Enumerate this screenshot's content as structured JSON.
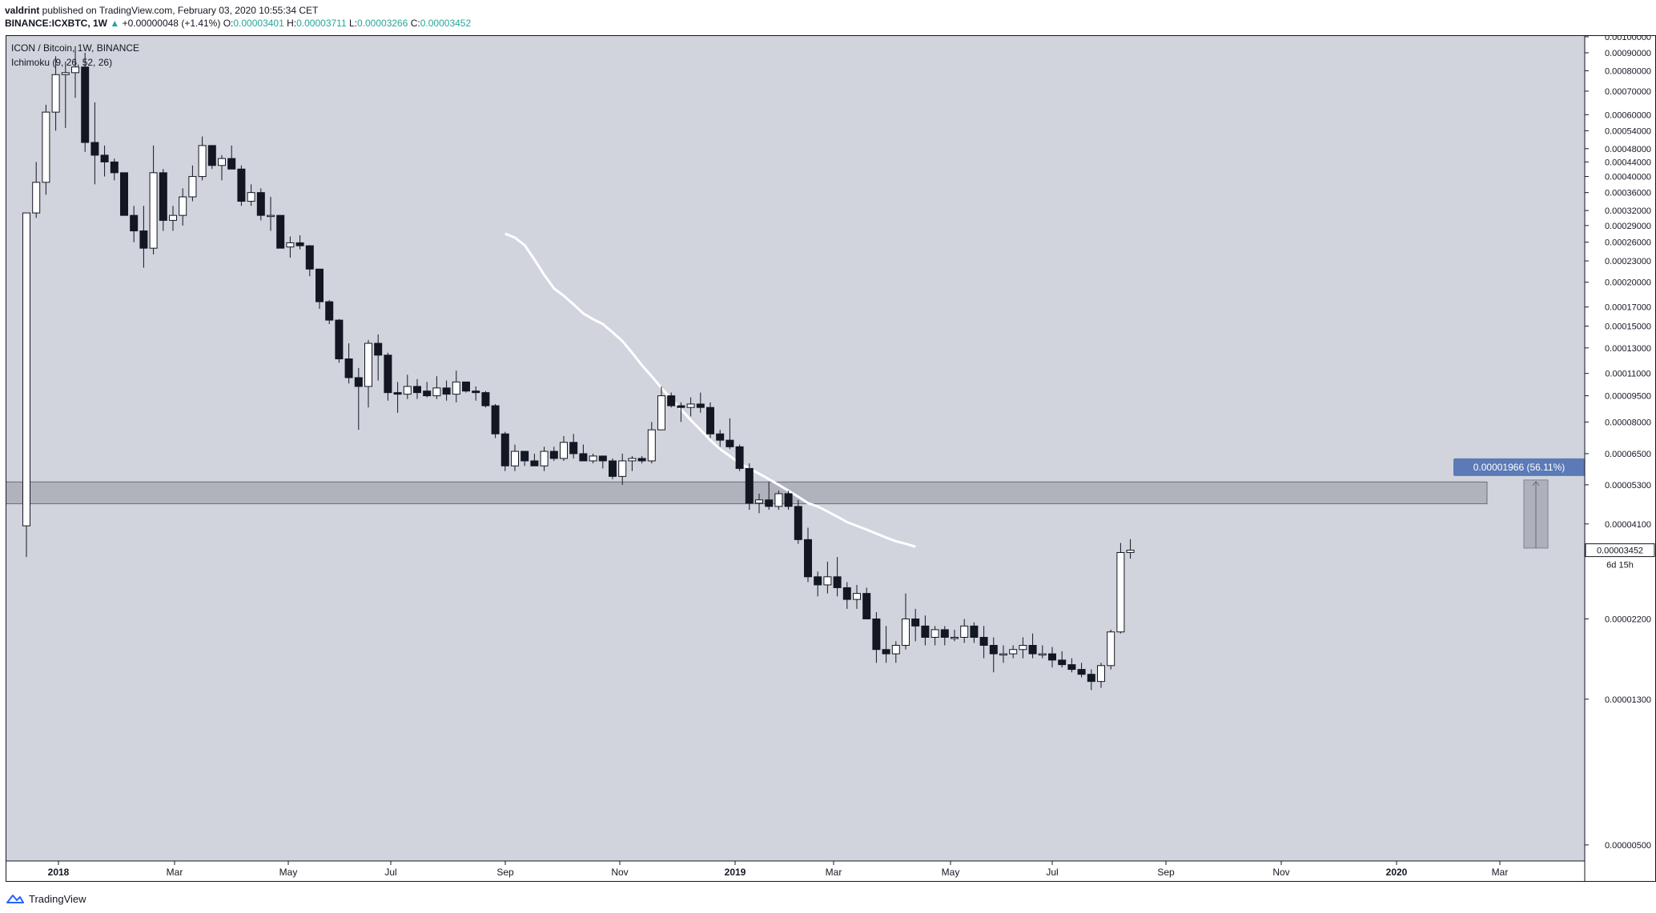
{
  "header": {
    "publisher": "valdrint",
    "published_text": " published on TradingView.com, February 03, 2020 10:55:34 CET",
    "symbol_line": "BINANCE:ICXBTC, 1W",
    "change": "+0.00000048 (+1.41%)",
    "o_label": "O:",
    "o_value": "0.00003401",
    "h_label": "H:",
    "h_value": "0.00003711",
    "l_label": "L:",
    "l_value": "0.00003266",
    "c_label": "C:",
    "c_value": "0.00003452"
  },
  "legend": {
    "title": "ICON / Bitcoin, 1W, BINANCE",
    "indicator": "Ichimoku (9, 26, 52, 26)"
  },
  "footer": {
    "brand": "TradingView"
  },
  "colors": {
    "background": "#d1d4dc",
    "bull": "#ffffff",
    "bear": "#131722",
    "line": "#ffffff",
    "zone": "#9598a1",
    "label_bg": "#5b7ab7"
  },
  "chart_data": {
    "type": "candlestick",
    "title": "ICON / Bitcoin, 1W, BINANCE",
    "log_scale": true,
    "xlabel": "",
    "ylabel": "",
    "ylim": [
      4.5e-06,
      0.00101
    ],
    "y_ticks": [
      "0.00100000",
      "0.00090000",
      "0.00080000",
      "0.00070000",
      "0.00060000",
      "0.00054000",
      "0.00048000",
      "0.00044000",
      "0.00040000",
      "0.00036000",
      "0.00032000",
      "0.00029000",
      "0.00026000",
      "0.00023000",
      "0.00020000",
      "0.00017000",
      "0.00015000",
      "0.00013000",
      "0.00011000",
      "0.00009500",
      "0.00008000",
      "0.00006500",
      "0.00005300",
      "0.00004100",
      "0.00002200",
      "0.00001300",
      "0.00000500"
    ],
    "x_ticks": [
      "2018",
      "Mar",
      "May",
      "Jul",
      "Sep",
      "Nov",
      "2019",
      "Mar",
      "May",
      "Jul",
      "Sep",
      "Nov",
      "2020",
      "Mar"
    ],
    "candles": [
      {
        "o": 4.05e-05,
        "h": 0.000315,
        "l": 3.3e-05,
        "c": 0.000315
      },
      {
        "o": 0.000315,
        "h": 0.00044,
        "l": 0.000305,
        "c": 0.000385
      },
      {
        "o": 0.000385,
        "h": 0.00064,
        "l": 0.000355,
        "c": 0.00061
      },
      {
        "o": 0.00061,
        "h": 0.00088,
        "l": 0.00054,
        "c": 0.00078
      },
      {
        "o": 0.00078,
        "h": 0.00085,
        "l": 0.00055,
        "c": 0.00079
      },
      {
        "o": 0.00079,
        "h": 0.00094,
        "l": 0.00067,
        "c": 0.00082
      },
      {
        "o": 0.00082,
        "h": 0.0009,
        "l": 0.00047,
        "c": 0.0005
      },
      {
        "o": 0.0005,
        "h": 0.00065,
        "l": 0.00038,
        "c": 0.00046
      },
      {
        "o": 0.00046,
        "h": 0.00049,
        "l": 0.0004,
        "c": 0.00044
      },
      {
        "o": 0.00044,
        "h": 0.00045,
        "l": 0.00039,
        "c": 0.00041
      },
      {
        "o": 0.00041,
        "h": 0.00041,
        "l": 0.00031,
        "c": 0.00031
      },
      {
        "o": 0.00031,
        "h": 0.00033,
        "l": 0.00026,
        "c": 0.00028
      },
      {
        "o": 0.00028,
        "h": 0.00033,
        "l": 0.00022,
        "c": 0.00025
      },
      {
        "o": 0.00025,
        "h": 0.00049,
        "l": 0.00024,
        "c": 0.00041
      },
      {
        "o": 0.00041,
        "h": 0.00042,
        "l": 0.00028,
        "c": 0.0003
      },
      {
        "o": 0.0003,
        "h": 0.00033,
        "l": 0.00028,
        "c": 0.00031
      },
      {
        "o": 0.00031,
        "h": 0.00037,
        "l": 0.00029,
        "c": 0.00035
      },
      {
        "o": 0.00035,
        "h": 0.00043,
        "l": 0.00034,
        "c": 0.0004
      },
      {
        "o": 0.0004,
        "h": 0.00052,
        "l": 0.00039,
        "c": 0.00049
      },
      {
        "o": 0.00049,
        "h": 0.00049,
        "l": 0.00042,
        "c": 0.00043
      },
      {
        "o": 0.00043,
        "h": 0.00046,
        "l": 0.00039,
        "c": 0.00045
      },
      {
        "o": 0.00045,
        "h": 0.00049,
        "l": 0.00042,
        "c": 0.00042
      },
      {
        "o": 0.00042,
        "h": 0.00043,
        "l": 0.00033,
        "c": 0.00034
      },
      {
        "o": 0.00034,
        "h": 0.00038,
        "l": 0.00033,
        "c": 0.00036
      },
      {
        "o": 0.00036,
        "h": 0.00037,
        "l": 0.0003,
        "c": 0.00031
      },
      {
        "o": 0.00031,
        "h": 0.00035,
        "l": 0.00028,
        "c": 0.00031
      },
      {
        "o": 0.00031,
        "h": 0.00031,
        "l": 0.00025,
        "c": 0.00025
      },
      {
        "o": 0.000252,
        "h": 0.00027,
        "l": 0.000235,
        "c": 0.000259
      },
      {
        "o": 0.000259,
        "h": 0.000272,
        "l": 0.000248,
        "c": 0.000254
      },
      {
        "o": 0.000254,
        "h": 0.000255,
        "l": 0.000208,
        "c": 0.000218
      },
      {
        "o": 0.000218,
        "h": 0.000218,
        "l": 0.000168,
        "c": 0.000176
      },
      {
        "o": 0.000176,
        "h": 0.000178,
        "l": 0.000152,
        "c": 0.000156
      },
      {
        "o": 0.000156,
        "h": 0.000157,
        "l": 0.000118,
        "c": 0.000121
      },
      {
        "o": 0.000121,
        "h": 0.000134,
        "l": 0.000103,
        "c": 0.000107
      },
      {
        "o": 0.000107,
        "h": 0.000114,
        "l": 7.6e-05,
        "c": 0.000101
      },
      {
        "o": 0.000101,
        "h": 0.000137,
        "l": 8.8e-05,
        "c": 0.000134
      },
      {
        "o": 0.000134,
        "h": 0.000142,
        "l": 0.000105,
        "c": 0.000124
      },
      {
        "o": 0.000124,
        "h": 0.000126,
        "l": 9.2e-05,
        "c": 9.7e-05
      },
      {
        "o": 9.7e-05,
        "h": 0.000104,
        "l": 8.5e-05,
        "c": 9.6e-05
      },
      {
        "o": 9.6e-05,
        "h": 0.000109,
        "l": 9.3e-05,
        "c": 0.000101
      },
      {
        "o": 0.000101,
        "h": 0.000106,
        "l": 9.3e-05,
        "c": 9.7e-05
      },
      {
        "o": 9.8e-05,
        "h": 0.000104,
        "l": 9.4e-05,
        "c": 9.5e-05
      },
      {
        "o": 9.5e-05,
        "h": 0.000108,
        "l": 9.3e-05,
        "c": 0.0001
      },
      {
        "o": 0.0001,
        "h": 0.000105,
        "l": 9.2e-05,
        "c": 9.6e-05
      },
      {
        "o": 9.6e-05,
        "h": 0.000112,
        "l": 9.1e-05,
        "c": 0.000104
      },
      {
        "o": 0.000104,
        "h": 0.000104,
        "l": 9.7e-05,
        "c": 9.8e-05
      },
      {
        "o": 9.8e-05,
        "h": 0.000101,
        "l": 9.2e-05,
        "c": 9.7e-05
      },
      {
        "o": 9.7e-05,
        "h": 9.8e-05,
        "l": 8.8e-05,
        "c": 8.9e-05
      },
      {
        "o": 8.9e-05,
        "h": 9e-05,
        "l": 7.2e-05,
        "c": 7.4e-05
      },
      {
        "o": 7.4e-05,
        "h": 7.5e-05,
        "l": 5.8e-05,
        "c": 6e-05
      },
      {
        "o": 6e-05,
        "h": 6.9e-05,
        "l": 5.8e-05,
        "c": 6.6e-05
      },
      {
        "o": 6.6e-05,
        "h": 6.6e-05,
        "l": 6e-05,
        "c": 6.2e-05
      },
      {
        "o": 6.2e-05,
        "h": 6.5e-05,
        "l": 6e-05,
        "c": 6e-05
      },
      {
        "o": 6e-05,
        "h": 6.8e-05,
        "l": 5.8e-05,
        "c": 6.6e-05
      },
      {
        "o": 6.6e-05,
        "h": 6.8e-05,
        "l": 6.2e-05,
        "c": 6.3e-05
      },
      {
        "o": 6.3e-05,
        "h": 7.3e-05,
        "l": 6.2e-05,
        "c": 7e-05
      },
      {
        "o": 7e-05,
        "h": 7.4e-05,
        "l": 6.3e-05,
        "c": 6.5e-05
      },
      {
        "o": 6.5e-05,
        "h": 6.9e-05,
        "l": 6.2e-05,
        "c": 6.2e-05
      },
      {
        "o": 6.2e-05,
        "h": 6.5e-05,
        "l": 6.1e-05,
        "c": 6.4e-05
      },
      {
        "o": 6.4e-05,
        "h": 6.4e-05,
        "l": 5.9e-05,
        "c": 6.2e-05
      },
      {
        "o": 6.2e-05,
        "h": 6.3e-05,
        "l": 5.5e-05,
        "c": 5.6e-05
      },
      {
        "o": 5.6e-05,
        "h": 6.5e-05,
        "l": 5.3e-05,
        "c": 6.2e-05
      },
      {
        "o": 6.2e-05,
        "h": 6.4e-05,
        "l": 5.8e-05,
        "c": 6.3e-05
      },
      {
        "o": 6.3e-05,
        "h": 6.4e-05,
        "l": 6.1e-05,
        "c": 6.2e-05
      },
      {
        "o": 6.2e-05,
        "h": 8e-05,
        "l": 6.1e-05,
        "c": 7.6e-05
      },
      {
        "o": 7.6e-05,
        "h": 0.000101,
        "l": 7.6e-05,
        "c": 9.5e-05
      },
      {
        "o": 9.5e-05,
        "h": 9.7e-05,
        "l": 8.8e-05,
        "c": 8.9e-05
      },
      {
        "o": 8.9e-05,
        "h": 9.1e-05,
        "l": 8e-05,
        "c": 8.8e-05
      },
      {
        "o": 8.8e-05,
        "h": 9.4e-05,
        "l": 8.3e-05,
        "c": 9e-05
      },
      {
        "o": 9e-05,
        "h": 9.7e-05,
        "l": 8.5e-05,
        "c": 8.8e-05
      },
      {
        "o": 8.8e-05,
        "h": 9.1e-05,
        "l": 7.2e-05,
        "c": 7.4e-05
      },
      {
        "o": 7.4e-05,
        "h": 7.6e-05,
        "l": 6.8e-05,
        "c": 7.1e-05
      },
      {
        "o": 7.1e-05,
        "h": 8.2e-05,
        "l": 6.7e-05,
        "c": 6.8e-05
      },
      {
        "o": 6.8e-05,
        "h": 6.9e-05,
        "l": 5.8e-05,
        "c": 5.9e-05
      },
      {
        "o": 5.9e-05,
        "h": 6.1e-05,
        "l": 4.5e-05,
        "c": 4.7e-05
      },
      {
        "o": 4.7e-05,
        "h": 5e-05,
        "l": 4.4e-05,
        "c": 4.8e-05
      },
      {
        "o": 4.8e-05,
        "h": 5.4e-05,
        "l": 4.5e-05,
        "c": 4.6e-05
      },
      {
        "o": 4.6e-05,
        "h": 5.1e-05,
        "l": 4.5e-05,
        "c": 5e-05
      },
      {
        "o": 5e-05,
        "h": 5.1e-05,
        "l": 4.5e-05,
        "c": 4.6e-05
      },
      {
        "o": 4.6e-05,
        "h": 4.8e-05,
        "l": 3.6e-05,
        "c": 3.7e-05
      },
      {
        "o": 3.7e-05,
        "h": 4e-05,
        "l": 2.8e-05,
        "c": 2.9e-05
      },
      {
        "o": 2.9e-05,
        "h": 3e-05,
        "l": 2.55e-05,
        "c": 2.75e-05
      },
      {
        "o": 2.75e-05,
        "h": 3.2e-05,
        "l": 2.6e-05,
        "c": 2.9e-05
      },
      {
        "o": 2.9e-05,
        "h": 3.3e-05,
        "l": 2.55e-05,
        "c": 2.7e-05
      },
      {
        "o": 2.7e-05,
        "h": 2.8e-05,
        "l": 2.35e-05,
        "c": 2.5e-05
      },
      {
        "o": 2.5e-05,
        "h": 2.75e-05,
        "l": 2.35e-05,
        "c": 2.6e-05
      },
      {
        "o": 2.6e-05,
        "h": 2.7e-05,
        "l": 2.2e-05,
        "c": 2.2e-05
      },
      {
        "o": 2.2e-05,
        "h": 2.3e-05,
        "l": 1.65e-05,
        "c": 1.8e-05
      },
      {
        "o": 1.8e-05,
        "h": 2.1e-05,
        "l": 1.65e-05,
        "c": 1.75e-05
      },
      {
        "o": 1.75e-05,
        "h": 1.9e-05,
        "l": 1.65e-05,
        "c": 1.85e-05
      },
      {
        "o": 1.85e-05,
        "h": 2.6e-05,
        "l": 1.8e-05,
        "c": 2.2e-05
      },
      {
        "o": 2.2e-05,
        "h": 2.35e-05,
        "l": 1.9e-05,
        "c": 2.1e-05
      },
      {
        "o": 2.1e-05,
        "h": 2.25e-05,
        "l": 1.85e-05,
        "c": 1.95e-05
      },
      {
        "o": 1.95e-05,
        "h": 2.1e-05,
        "l": 1.85e-05,
        "c": 2.05e-05
      },
      {
        "o": 2.05e-05,
        "h": 2.1e-05,
        "l": 1.85e-05,
        "c": 1.95e-05
      },
      {
        "o": 1.95e-05,
        "h": 2.05e-05,
        "l": 1.9e-05,
        "c": 1.95e-05
      },
      {
        "o": 1.95e-05,
        "h": 2.2e-05,
        "l": 1.88e-05,
        "c": 2.1e-05
      },
      {
        "o": 2.1e-05,
        "h": 2.15e-05,
        "l": 1.88e-05,
        "c": 1.95e-05
      },
      {
        "o": 1.95e-05,
        "h": 2.1e-05,
        "l": 1.7e-05,
        "c": 1.85e-05
      },
      {
        "o": 1.85e-05,
        "h": 1.95e-05,
        "l": 1.55e-05,
        "c": 1.75e-05
      },
      {
        "o": 1.75e-05,
        "h": 1.85e-05,
        "l": 1.65e-05,
        "c": 1.75e-05
      },
      {
        "o": 1.75e-05,
        "h": 1.85e-05,
        "l": 1.7e-05,
        "c": 1.8e-05
      },
      {
        "o": 1.8e-05,
        "h": 1.95e-05,
        "l": 1.7e-05,
        "c": 1.85e-05
      },
      {
        "o": 1.85e-05,
        "h": 2e-05,
        "l": 1.7e-05,
        "c": 1.75e-05
      },
      {
        "o": 1.75e-05,
        "h": 1.85e-05,
        "l": 1.7e-05,
        "c": 1.75e-05
      },
      {
        "o": 1.75e-05,
        "h": 1.83e-05,
        "l": 1.6e-05,
        "c": 1.68e-05
      },
      {
        "o": 1.68e-05,
        "h": 1.78e-05,
        "l": 1.6e-05,
        "c": 1.63e-05
      },
      {
        "o": 1.63e-05,
        "h": 1.7e-05,
        "l": 1.55e-05,
        "c": 1.58e-05
      },
      {
        "o": 1.58e-05,
        "h": 1.65e-05,
        "l": 1.5e-05,
        "c": 1.53e-05
      },
      {
        "o": 1.53e-05,
        "h": 1.58e-05,
        "l": 1.38e-05,
        "c": 1.46e-05
      },
      {
        "o": 1.46e-05,
        "h": 1.65e-05,
        "l": 1.4e-05,
        "c": 1.62e-05
      },
      {
        "o": 1.62e-05,
        "h": 2.05e-05,
        "l": 1.58e-05,
        "c": 2.02e-05
      },
      {
        "o": 2.02e-05,
        "h": 3.62e-05,
        "l": 2e-05,
        "c": 3.4e-05
      },
      {
        "o": 3.401e-05,
        "h": 3.711e-05,
        "l": 3.266e-05,
        "c": 3.452e-05
      }
    ],
    "cloud_line": [
      0.000275,
      0.000268,
      0.000255,
      0.000232,
      0.00021,
      0.000192,
      0.000183,
      0.000173,
      0.000163,
      0.000157,
      0.000152,
      0.000144,
      0.000136,
      0.000126,
      0.000116,
      0.000108,
      0.0001,
      9.3e-05,
      8.7e-05,
      8.1e-05,
      7.6e-05,
      7.1e-05,
      6.7e-05,
      6.4e-05,
      6.1e-05,
      5.9e-05,
      5.7e-05,
      5.5e-05,
      5.3e-05,
      5.1e-05,
      4.9e-05,
      4.7e-05,
      4.6e-05,
      4.45e-05,
      4.3e-05,
      4.15e-05,
      4.05e-05,
      3.95e-05,
      3.85e-05,
      3.75e-05,
      3.66e-05,
      3.6e-05,
      3.53e-05
    ],
    "cloud_line_start_index": 49,
    "support_zone": {
      "low": 4.68e-05,
      "high": 5.4e-05
    },
    "projection": {
      "label": "0.00001966 (56.11%)",
      "from": 3.5e-05,
      "to": 5.47e-05
    },
    "price_label": "0.00003452",
    "countdown": "6d 15h"
  }
}
